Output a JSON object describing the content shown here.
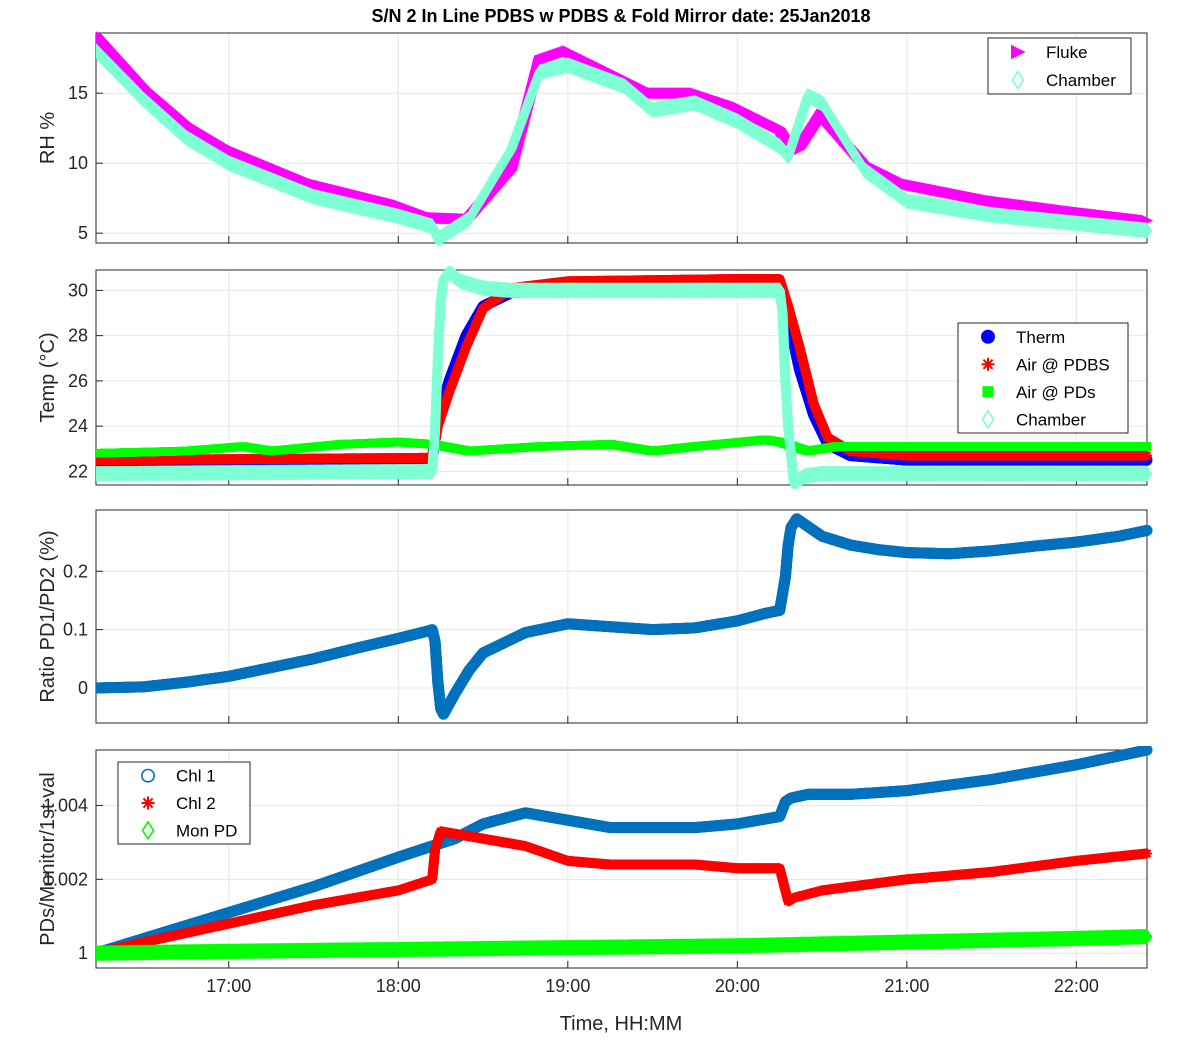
{
  "figure": {
    "title": "S/N 2 In Line PDBS w PDBS & Fold Mirror date: 25Jan2018",
    "xlabel": "Time, HH:MM",
    "xticks": [
      "17:00",
      "18:00",
      "19:00",
      "20:00",
      "21:00",
      "22:00"
    ]
  },
  "chart_data": [
    {
      "type": "scatter",
      "ylabel": "RH %",
      "xlim": [
        "16:13",
        "22:25"
      ],
      "ylim": [
        4.3,
        19.3
      ],
      "yticks": [
        5,
        10,
        15
      ],
      "yticklabels": [
        "5",
        "10",
        "15"
      ],
      "grid": true,
      "legend": "top-right",
      "series": [
        {
          "name": "Fluke",
          "marker": "triangle-right",
          "color": "#FF00FF",
          "x": [
            "16:13",
            "16:30",
            "16:45",
            "17:00",
            "17:30",
            "18:00",
            "18:12",
            "18:25",
            "18:40",
            "18:50",
            "19:00",
            "19:20",
            "19:30",
            "19:45",
            "20:00",
            "20:15",
            "20:18",
            "20:22",
            "20:30",
            "20:45",
            "21:00",
            "21:30",
            "22:00",
            "22:25"
          ],
          "y": [
            19.2,
            15.4,
            12.8,
            11.0,
            8.5,
            7.0,
            6.1,
            6.0,
            9.5,
            17.3,
            18.0,
            16.0,
            15.0,
            15.0,
            14.0,
            12.5,
            11.5,
            11.0,
            13.5,
            10.0,
            8.5,
            7.3,
            6.5,
            5.9
          ]
        },
        {
          "name": "Chamber",
          "marker": "diamond-open",
          "color": "#7FFFD4",
          "x": [
            "16:13",
            "16:30",
            "16:45",
            "17:00",
            "17:30",
            "18:00",
            "18:12",
            "18:14",
            "18:25",
            "18:40",
            "18:50",
            "19:00",
            "19:20",
            "19:30",
            "19:45",
            "20:00",
            "20:15",
            "20:18",
            "20:25",
            "20:30",
            "20:45",
            "21:00",
            "21:30",
            "22:00",
            "22:25"
          ],
          "y": [
            18.0,
            14.5,
            11.8,
            10.0,
            7.6,
            6.2,
            5.5,
            4.6,
            6.0,
            11.0,
            16.5,
            17.0,
            15.5,
            13.8,
            14.3,
            13.0,
            11.2,
            10.5,
            14.8,
            14.3,
            9.5,
            7.3,
            6.3,
            5.7,
            5.2
          ]
        }
      ]
    },
    {
      "type": "scatter",
      "ylabel": "Temp (°C)",
      "xlim": [
        "16:13",
        "22:25"
      ],
      "ylim": [
        21.4,
        30.9
      ],
      "yticks": [
        22,
        24,
        26,
        28,
        30
      ],
      "yticklabels": [
        "22",
        "24",
        "26",
        "28",
        "30"
      ],
      "grid": true,
      "legend": "right",
      "series": [
        {
          "name": "Therm",
          "marker": "circle-filled",
          "color": "#0000FF",
          "x": [
            "16:13",
            "18:12",
            "18:14",
            "18:18",
            "18:24",
            "18:30",
            "18:40",
            "19:00",
            "20:00",
            "20:15",
            "20:18",
            "20:22",
            "20:27",
            "20:32",
            "20:40",
            "21:00",
            "22:25"
          ],
          "y": [
            22.4,
            22.5,
            24.3,
            26.0,
            28.0,
            29.3,
            29.9,
            30.0,
            30.1,
            30.1,
            28.8,
            26.5,
            24.5,
            23.2,
            22.7,
            22.5,
            22.5
          ]
        },
        {
          "name": "Air @ PDBS",
          "marker": "asterisk",
          "color": "#FF0000",
          "x": [
            "16:13",
            "18:12",
            "18:14",
            "18:18",
            "18:24",
            "18:30",
            "18:40",
            "19:00",
            "20:00",
            "20:15",
            "20:18",
            "20:22",
            "20:27",
            "20:32",
            "20:40",
            "21:00",
            "22:25"
          ],
          "y": [
            22.5,
            22.6,
            24.0,
            25.5,
            27.5,
            29.2,
            30.1,
            30.4,
            30.5,
            30.5,
            29.3,
            27.5,
            25.0,
            23.5,
            22.9,
            22.7,
            22.7
          ]
        },
        {
          "name": "Air @ PDs",
          "marker": "square-filled",
          "color": "#00FF00",
          "x": [
            "16:13",
            "16:45",
            "17:05",
            "17:15",
            "17:40",
            "18:00",
            "18:12",
            "18:25",
            "18:50",
            "19:15",
            "19:30",
            "19:45",
            "20:10",
            "20:15",
            "20:25",
            "20:35",
            "21:30",
            "22:25"
          ],
          "y": [
            22.8,
            22.9,
            23.1,
            22.9,
            23.2,
            23.3,
            23.2,
            22.9,
            23.1,
            23.2,
            22.9,
            23.1,
            23.4,
            23.3,
            22.9,
            23.1,
            23.1,
            23.1
          ]
        },
        {
          "name": "Chamber",
          "marker": "diamond-open",
          "color": "#7FFFD4",
          "x": [
            "16:13",
            "18:12",
            "18:13",
            "18:14",
            "18:15",
            "18:16",
            "18:18",
            "18:22",
            "18:30",
            "18:40",
            "19:00",
            "20:00",
            "20:15",
            "20:16",
            "20:17",
            "20:18",
            "20:20",
            "20:24",
            "20:30",
            "21:00",
            "22:25"
          ],
          "y": [
            21.9,
            22.0,
            23.8,
            27.0,
            29.5,
            30.5,
            30.8,
            30.4,
            30.1,
            30.0,
            30.0,
            30.0,
            30.0,
            29.0,
            26.0,
            24.0,
            21.5,
            21.8,
            21.9,
            21.9,
            21.9
          ]
        }
      ]
    },
    {
      "type": "scatter",
      "ylabel": "Ratio PD1/PD2 (%)",
      "xlim": [
        "16:13",
        "22:25"
      ],
      "ylim": [
        -0.06,
        0.305
      ],
      "yticks": [
        0,
        0.1,
        0.2
      ],
      "yticklabels": [
        "0",
        "0.1",
        "0.2"
      ],
      "grid": true,
      "series": [
        {
          "name": "",
          "marker": "circle-open",
          "color": "#0072BD",
          "x": [
            "16:13",
            "16:30",
            "16:45",
            "17:00",
            "17:15",
            "17:30",
            "17:45",
            "18:00",
            "18:10",
            "18:12",
            "18:13",
            "18:14",
            "18:15",
            "18:16",
            "18:20",
            "18:25",
            "18:30",
            "18:45",
            "19:00",
            "19:30",
            "19:45",
            "20:00",
            "20:10",
            "20:15",
            "20:17",
            "20:18",
            "20:19",
            "20:21",
            "20:24",
            "20:30",
            "20:40",
            "20:50",
            "21:00",
            "21:15",
            "21:30",
            "21:45",
            "22:00",
            "22:15",
            "22:25"
          ],
          "y": [
            0.0,
            0.002,
            0.01,
            0.02,
            0.035,
            0.05,
            0.068,
            0.085,
            0.097,
            0.1,
            0.08,
            0.01,
            -0.035,
            -0.045,
            -0.01,
            0.03,
            0.06,
            0.095,
            0.11,
            0.1,
            0.103,
            0.115,
            0.128,
            0.133,
            0.19,
            0.245,
            0.275,
            0.29,
            0.28,
            0.26,
            0.245,
            0.237,
            0.232,
            0.23,
            0.235,
            0.243,
            0.25,
            0.26,
            0.27
          ]
        }
      ]
    },
    {
      "type": "scatter",
      "ylabel": "PDs/Monitor/1st val",
      "xlim": [
        "16:13",
        "22:25"
      ],
      "ylim": [
        0.9996,
        1.0055
      ],
      "yticks": [
        1,
        1.002,
        1.004
      ],
      "yticklabels": [
        "1",
        "1.002",
        "1.004"
      ],
      "grid": true,
      "legend": "top-left",
      "series": [
        {
          "name": "Chl 1",
          "marker": "circle-open",
          "color": "#0072BD",
          "x": [
            "16:13",
            "16:30",
            "17:00",
            "17:30",
            "18:00",
            "18:12",
            "18:20",
            "18:30",
            "18:45",
            "19:00",
            "19:15",
            "19:30",
            "19:45",
            "20:00",
            "20:15",
            "20:17",
            "20:19",
            "20:25",
            "20:40",
            "21:00",
            "21:30",
            "22:00",
            "22:25"
          ],
          "y": [
            1.0,
            1.0004,
            1.0011,
            1.0018,
            1.0026,
            1.0029,
            1.0031,
            1.0035,
            1.0038,
            1.0036,
            1.0034,
            1.0034,
            1.0034,
            1.0035,
            1.0037,
            1.0041,
            1.0042,
            1.0043,
            1.0043,
            1.0044,
            1.0047,
            1.0051,
            1.0055
          ]
        },
        {
          "name": "Chl 2",
          "marker": "asterisk",
          "color": "#FF0000",
          "x": [
            "16:13",
            "16:30",
            "17:00",
            "17:30",
            "18:00",
            "18:12",
            "18:13",
            "18:15",
            "18:30",
            "18:45",
            "19:00",
            "19:15",
            "19:30",
            "19:45",
            "20:00",
            "20:10",
            "20:15",
            "20:17",
            "20:18",
            "20:20",
            "20:30",
            "21:00",
            "21:30",
            "22:00",
            "22:25"
          ],
          "y": [
            1.0,
            1.0003,
            1.0008,
            1.0013,
            1.0017,
            1.002,
            1.0028,
            1.0033,
            1.0031,
            1.0029,
            1.0025,
            1.0024,
            1.0024,
            1.0024,
            1.0023,
            1.0023,
            1.0023,
            1.0017,
            1.0014,
            1.0015,
            1.0017,
            1.002,
            1.0022,
            1.0025,
            1.0027
          ]
        },
        {
          "name": "Mon PD",
          "marker": "diamond-open",
          "color": "#00FF00",
          "x": [
            "16:13",
            "17:00",
            "18:00",
            "19:00",
            "20:00",
            "21:00",
            "22:00",
            "22:25"
          ],
          "y": [
            1.0,
            1.00005,
            1.0001,
            1.00015,
            1.0002,
            1.0003,
            1.0004,
            1.00045
          ]
        }
      ]
    }
  ]
}
